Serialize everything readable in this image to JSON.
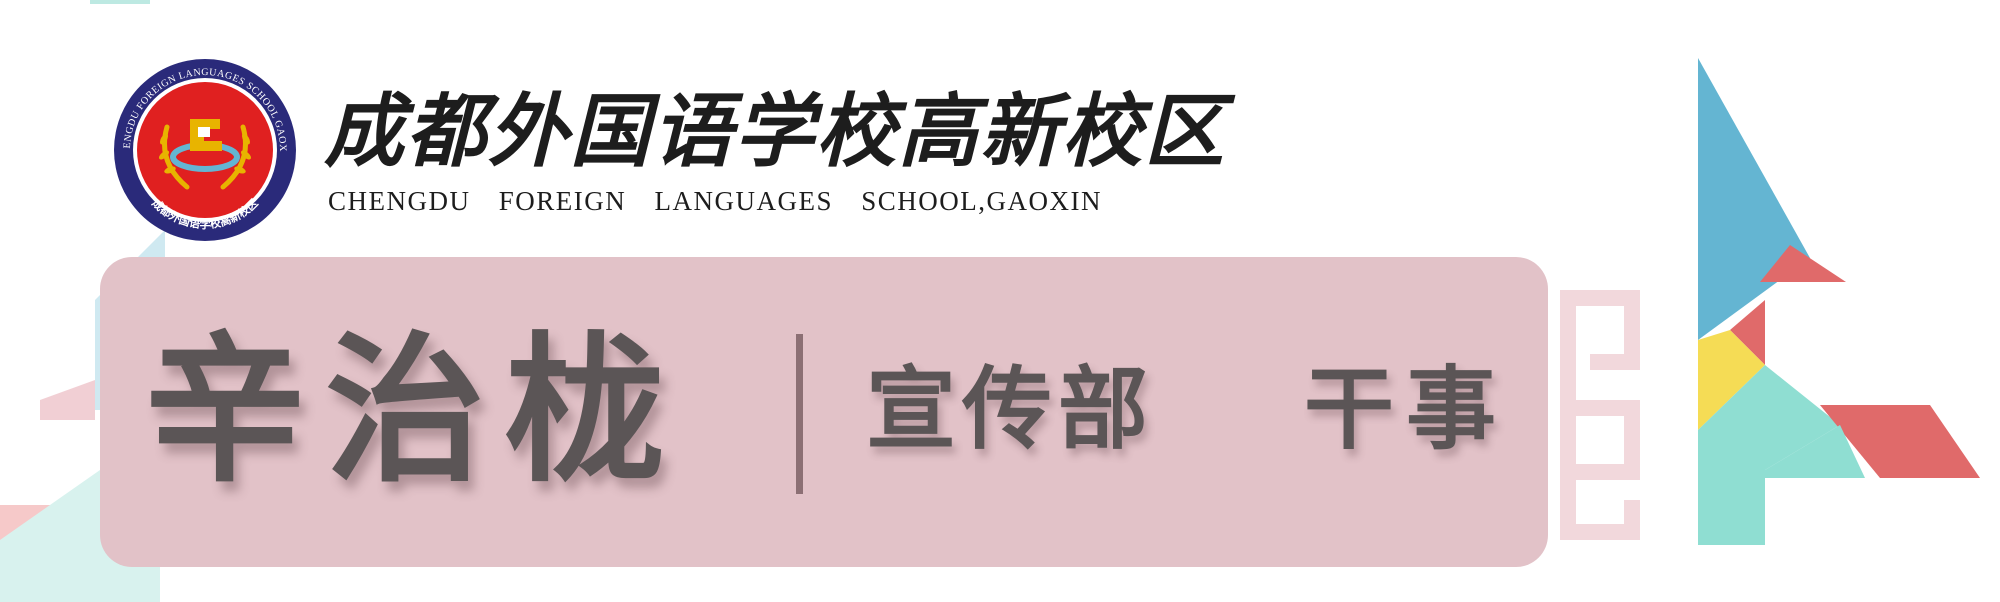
{
  "school": {
    "name_cn": "成都外国语学校高新校区",
    "name_en": "CHENGDU FOREIGN LANGUAGES SCHOOL,GAOXIN",
    "seal_text_outer": "CHENGDU FOREIGN LANGUAGES SCHOOL GAOXIN",
    "seal_text_inner": "成都外国语学校高新校区"
  },
  "card": {
    "person_name": "辛治栊",
    "department": "宣传部",
    "position": "干事"
  },
  "colors": {
    "card_background": "#e2c2c8",
    "text_gray": "#5b5556",
    "divider": "#8c6f74",
    "logo_navy": "#2a2a7a",
    "logo_red": "#e02020",
    "logo_gold": "#e8b400",
    "deco_blue": "#64b5d2",
    "deco_coral": "#e06a6a",
    "deco_yellow": "#f5dc55",
    "deco_mint": "#8fded2",
    "deco_pink": "#f2d8dc"
  }
}
